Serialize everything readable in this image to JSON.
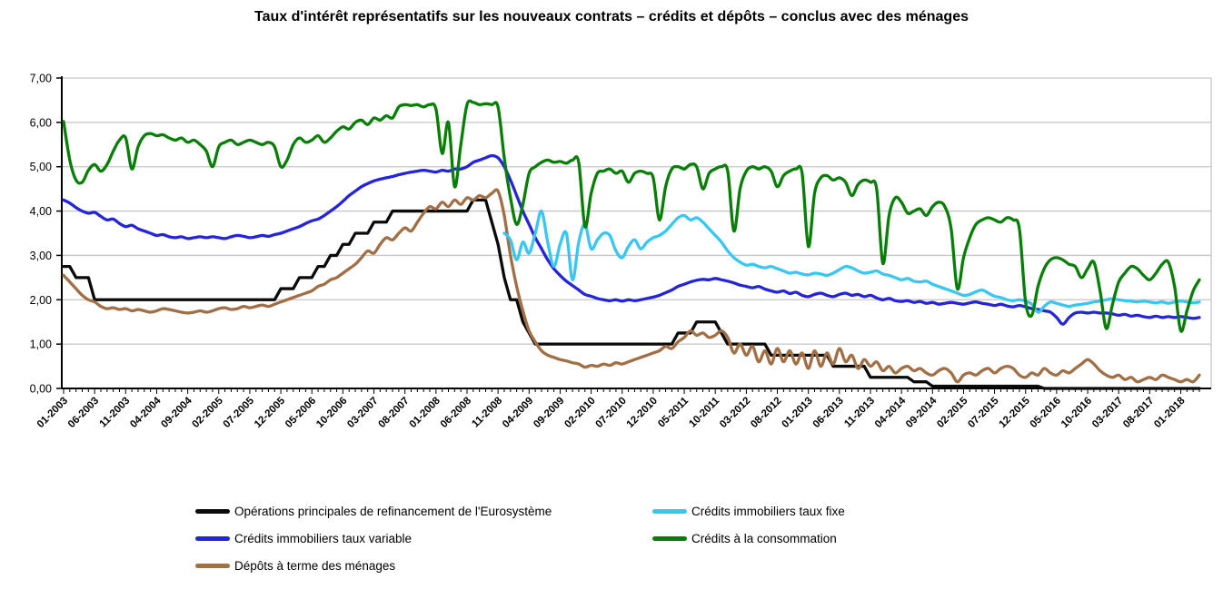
{
  "title": "Taux d'intérêt représentatifs sur les nouveaux contrats – crédits et dépôts – conclus avec des ménages",
  "chart_data": {
    "type": "line",
    "title": "Taux d'intérêt représentatifs sur les nouveaux contrats – crédits et dépôts – conclus avec des ménages",
    "x_unit": "month",
    "n_points": 184,
    "x_tick_labels": [
      "01-2003",
      "06-2003",
      "11-2003",
      "04-2004",
      "09-2004",
      "02-2005",
      "07-2005",
      "12-2005",
      "05-2006",
      "10-2006",
      "03-2007",
      "08-2007",
      "01-2008",
      "06-2008",
      "11-2008",
      "04-2009",
      "09-2009",
      "02-2010",
      "07-2010",
      "12-2010",
      "05-2011",
      "10-2011",
      "03-2012",
      "08-2012",
      "01-2013",
      "06-2013",
      "11-2013",
      "04-2014",
      "09-2014",
      "02-2015",
      "07-2015",
      "12-2015",
      "05-2016",
      "10-2016",
      "03-2017",
      "08-2017",
      "01-2018"
    ],
    "x_label_every": 5,
    "ylim": [
      0,
      7
    ],
    "y_ticks": [
      "0,00",
      "1,00",
      "2,00",
      "3,00",
      "4,00",
      "5,00",
      "6,00",
      "7,00"
    ],
    "grid": "horizontal",
    "grid_color": "#c6c6c6",
    "axis_color": "#000000",
    "legend_position": "bottom",
    "draw_order": [
      0,
      4,
      2,
      1,
      3
    ],
    "series": [
      {
        "name": "Opérations principales de refinancement de l'Eurosystème",
        "color": "#0a0a0a",
        "smooth": false,
        "values": [
          2.75,
          2.75,
          2.5,
          2.5,
          2.5,
          2.0,
          2.0,
          2.0,
          2.0,
          2.0,
          2.0,
          2.0,
          2.0,
          2.0,
          2.0,
          2.0,
          2.0,
          2.0,
          2.0,
          2.0,
          2.0,
          2.0,
          2.0,
          2.0,
          2.0,
          2.0,
          2.0,
          2.0,
          2.0,
          2.0,
          2.0,
          2.0,
          2.0,
          2.0,
          2.0,
          2.25,
          2.25,
          2.25,
          2.5,
          2.5,
          2.5,
          2.75,
          2.75,
          3.0,
          3.0,
          3.25,
          3.25,
          3.5,
          3.5,
          3.5,
          3.75,
          3.75,
          3.75,
          4.0,
          4.0,
          4.0,
          4.0,
          4.0,
          4.0,
          4.0,
          4.0,
          4.0,
          4.0,
          4.0,
          4.0,
          4.0,
          4.25,
          4.25,
          4.25,
          3.75,
          3.25,
          2.5,
          2.0,
          2.0,
          1.5,
          1.25,
          1.0,
          1.0,
          1.0,
          1.0,
          1.0,
          1.0,
          1.0,
          1.0,
          1.0,
          1.0,
          1.0,
          1.0,
          1.0,
          1.0,
          1.0,
          1.0,
          1.0,
          1.0,
          1.0,
          1.0,
          1.0,
          1.0,
          1.0,
          1.25,
          1.25,
          1.25,
          1.5,
          1.5,
          1.5,
          1.5,
          1.25,
          1.0,
          1.0,
          1.0,
          1.0,
          1.0,
          1.0,
          1.0,
          0.75,
          0.75,
          0.75,
          0.75,
          0.75,
          0.75,
          0.75,
          0.75,
          0.75,
          0.75,
          0.5,
          0.5,
          0.5,
          0.5,
          0.5,
          0.5,
          0.25,
          0.25,
          0.25,
          0.25,
          0.25,
          0.25,
          0.25,
          0.15,
          0.15,
          0.15,
          0.05,
          0.05,
          0.05,
          0.05,
          0.05,
          0.05,
          0.05,
          0.05,
          0.05,
          0.05,
          0.05,
          0.05,
          0.05,
          0.05,
          0.05,
          0.05,
          0.05,
          0.05,
          0.0,
          0.0,
          0.0,
          0.0,
          0.0,
          0.0,
          0.0,
          0.0,
          0.0,
          0.0,
          0.0,
          0.0,
          0.0,
          0.0,
          0.0,
          0.0,
          0.0,
          0.0,
          0.0,
          0.0,
          0.0,
          0.0,
          0.0,
          0.0,
          0.0,
          0.0
        ]
      },
      {
        "name": "Crédits immobiliers taux fixe",
        "color": "#38c6f2",
        "smooth": true,
        "values": [
          null,
          null,
          null,
          null,
          null,
          null,
          null,
          null,
          null,
          null,
          null,
          null,
          null,
          null,
          null,
          null,
          null,
          null,
          null,
          null,
          null,
          null,
          null,
          null,
          null,
          null,
          null,
          null,
          null,
          null,
          null,
          null,
          null,
          null,
          null,
          null,
          null,
          null,
          null,
          null,
          null,
          null,
          null,
          null,
          null,
          null,
          null,
          null,
          null,
          null,
          null,
          null,
          null,
          null,
          null,
          null,
          null,
          null,
          null,
          null,
          null,
          null,
          null,
          null,
          null,
          null,
          null,
          null,
          null,
          null,
          null,
          3.5,
          3.35,
          2.9,
          3.3,
          3.05,
          3.5,
          4.0,
          3.3,
          2.75,
          3.25,
          3.5,
          2.45,
          3.3,
          3.7,
          3.15,
          3.35,
          3.5,
          3.45,
          3.1,
          2.95,
          3.2,
          3.35,
          3.15,
          3.3,
          3.4,
          3.45,
          3.55,
          3.7,
          3.85,
          3.9,
          3.8,
          3.85,
          3.75,
          3.6,
          3.45,
          3.3,
          3.1,
          2.95,
          2.85,
          2.78,
          2.8,
          2.75,
          2.72,
          2.75,
          2.7,
          2.65,
          2.6,
          2.62,
          2.58,
          2.56,
          2.6,
          2.58,
          2.55,
          2.6,
          2.68,
          2.75,
          2.72,
          2.65,
          2.6,
          2.62,
          2.65,
          2.58,
          2.55,
          2.5,
          2.45,
          2.48,
          2.42,
          2.4,
          2.42,
          2.35,
          2.3,
          2.25,
          2.2,
          2.15,
          2.1,
          2.12,
          2.18,
          2.22,
          2.15,
          2.08,
          2.05,
          2.0,
          1.98,
          2.0,
          1.97,
          1.9,
          1.72,
          1.85,
          1.95,
          1.92,
          1.88,
          1.85,
          1.88,
          1.9,
          1.92,
          1.95,
          1.97,
          2.0,
          2.02,
          2.0,
          1.98,
          1.97,
          1.95,
          1.97,
          1.95,
          1.93,
          1.95,
          1.92,
          1.95,
          1.97,
          1.95,
          1.93,
          1.95
        ]
      },
      {
        "name": "Crédits immobiliers taux variable",
        "color": "#2424dd",
        "smooth": true,
        "values": [
          4.25,
          4.18,
          4.08,
          4.0,
          3.95,
          3.97,
          3.88,
          3.8,
          3.82,
          3.72,
          3.65,
          3.68,
          3.6,
          3.55,
          3.5,
          3.45,
          3.47,
          3.42,
          3.4,
          3.42,
          3.38,
          3.4,
          3.42,
          3.4,
          3.42,
          3.4,
          3.38,
          3.42,
          3.45,
          3.43,
          3.4,
          3.42,
          3.45,
          3.43,
          3.47,
          3.5,
          3.55,
          3.6,
          3.65,
          3.72,
          3.78,
          3.82,
          3.9,
          4.0,
          4.1,
          4.22,
          4.35,
          4.45,
          4.55,
          4.62,
          4.68,
          4.72,
          4.75,
          4.78,
          4.82,
          4.85,
          4.88,
          4.9,
          4.92,
          4.9,
          4.88,
          4.92,
          4.9,
          4.95,
          4.95,
          5.0,
          5.1,
          5.15,
          5.2,
          5.25,
          5.2,
          5.0,
          4.7,
          4.35,
          4.0,
          3.7,
          3.4,
          3.15,
          2.9,
          2.7,
          2.55,
          2.42,
          2.32,
          2.22,
          2.12,
          2.08,
          2.03,
          2.0,
          1.98,
          2.0,
          1.97,
          2.0,
          1.98,
          2.0,
          2.03,
          2.06,
          2.1,
          2.16,
          2.22,
          2.3,
          2.35,
          2.4,
          2.44,
          2.46,
          2.45,
          2.48,
          2.45,
          2.42,
          2.38,
          2.33,
          2.3,
          2.27,
          2.3,
          2.24,
          2.2,
          2.17,
          2.2,
          2.14,
          2.17,
          2.1,
          2.07,
          2.12,
          2.15,
          2.1,
          2.07,
          2.12,
          2.15,
          2.1,
          2.12,
          2.07,
          2.1,
          2.04,
          2.0,
          2.03,
          1.98,
          1.96,
          1.98,
          1.94,
          1.96,
          1.92,
          1.94,
          1.9,
          1.92,
          1.94,
          1.92,
          1.9,
          1.93,
          1.95,
          1.92,
          1.9,
          1.87,
          1.9,
          1.86,
          1.84,
          1.87,
          1.84,
          1.8,
          1.78,
          1.75,
          1.72,
          1.6,
          1.45,
          1.6,
          1.7,
          1.72,
          1.7,
          1.72,
          1.7,
          1.7,
          1.68,
          1.65,
          1.67,
          1.63,
          1.65,
          1.62,
          1.6,
          1.63,
          1.6,
          1.62,
          1.6,
          1.62,
          1.6,
          1.58,
          1.6
        ]
      },
      {
        "name": "Crédits à la consommation",
        "color": "#077f07",
        "smooth": true,
        "values": [
          6.02,
          5.15,
          4.7,
          4.65,
          4.92,
          5.05,
          4.9,
          5.05,
          5.35,
          5.6,
          5.65,
          4.95,
          5.45,
          5.7,
          5.75,
          5.7,
          5.72,
          5.65,
          5.6,
          5.65,
          5.55,
          5.6,
          5.5,
          5.35,
          5.0,
          5.45,
          5.55,
          5.6,
          5.5,
          5.55,
          5.6,
          5.55,
          5.5,
          5.55,
          5.45,
          5.0,
          5.15,
          5.5,
          5.65,
          5.55,
          5.6,
          5.7,
          5.55,
          5.65,
          5.8,
          5.9,
          5.85,
          6.0,
          6.05,
          5.95,
          6.1,
          6.05,
          6.15,
          6.1,
          6.35,
          6.4,
          6.38,
          6.4,
          6.35,
          6.4,
          6.3,
          5.3,
          6.0,
          4.55,
          5.5,
          6.4,
          6.45,
          6.4,
          6.42,
          6.4,
          6.35,
          5.2,
          4.3,
          3.7,
          4.15,
          4.85,
          5.0,
          5.1,
          5.15,
          5.1,
          5.12,
          5.08,
          5.15,
          5.1,
          3.65,
          4.4,
          4.85,
          4.9,
          4.95,
          4.85,
          4.9,
          4.65,
          4.85,
          4.9,
          4.85,
          4.75,
          3.8,
          4.55,
          4.95,
          5.0,
          4.95,
          5.05,
          5.0,
          4.5,
          4.85,
          4.95,
          5.0,
          4.9,
          3.55,
          4.5,
          4.9,
          5.0,
          4.95,
          5.0,
          4.9,
          4.55,
          4.8,
          4.9,
          4.95,
          4.85,
          3.2,
          4.4,
          4.75,
          4.8,
          4.7,
          4.75,
          4.65,
          4.35,
          4.6,
          4.7,
          4.65,
          4.5,
          2.82,
          3.9,
          4.3,
          4.2,
          3.95,
          4.0,
          4.05,
          3.9,
          4.1,
          4.2,
          4.1,
          3.6,
          2.25,
          2.95,
          3.4,
          3.7,
          3.8,
          3.85,
          3.8,
          3.75,
          3.85,
          3.8,
          3.6,
          1.95,
          1.65,
          2.3,
          2.7,
          2.9,
          2.95,
          2.9,
          2.8,
          2.75,
          2.5,
          2.7,
          2.85,
          2.2,
          1.35,
          1.9,
          2.4,
          2.6,
          2.75,
          2.7,
          2.55,
          2.45,
          2.6,
          2.8,
          2.85,
          2.3,
          1.3,
          1.75,
          2.2,
          2.45
        ]
      },
      {
        "name": "Dépôts à terme des ménages",
        "color": "#a26e44",
        "smooth": true,
        "values": [
          2.55,
          2.4,
          2.25,
          2.1,
          2.0,
          1.95,
          1.85,
          1.8,
          1.82,
          1.78,
          1.8,
          1.75,
          1.78,
          1.75,
          1.72,
          1.75,
          1.8,
          1.78,
          1.75,
          1.72,
          1.7,
          1.72,
          1.75,
          1.72,
          1.75,
          1.8,
          1.82,
          1.78,
          1.8,
          1.85,
          1.82,
          1.85,
          1.88,
          1.85,
          1.9,
          1.95,
          2.0,
          2.05,
          2.1,
          2.15,
          2.2,
          2.3,
          2.35,
          2.45,
          2.5,
          2.6,
          2.7,
          2.8,
          2.95,
          3.1,
          3.05,
          3.25,
          3.4,
          3.35,
          3.5,
          3.62,
          3.55,
          3.75,
          3.95,
          4.1,
          4.05,
          4.2,
          4.1,
          4.25,
          4.15,
          4.3,
          4.25,
          4.35,
          4.3,
          4.4,
          4.45,
          3.9,
          3.0,
          2.3,
          1.75,
          1.3,
          1.05,
          0.85,
          0.75,
          0.7,
          0.65,
          0.62,
          0.58,
          0.55,
          0.48,
          0.52,
          0.5,
          0.55,
          0.52,
          0.58,
          0.55,
          0.6,
          0.65,
          0.7,
          0.75,
          0.8,
          0.85,
          0.95,
          0.9,
          1.05,
          1.15,
          1.3,
          1.2,
          1.25,
          1.15,
          1.2,
          1.3,
          1.15,
          0.8,
          1.0,
          0.75,
          0.95,
          0.6,
          0.85,
          0.55,
          0.9,
          0.6,
          0.85,
          0.55,
          0.8,
          0.45,
          0.85,
          0.5,
          0.8,
          0.55,
          0.9,
          0.6,
          0.75,
          0.45,
          0.65,
          0.5,
          0.6,
          0.4,
          0.5,
          0.35,
          0.45,
          0.5,
          0.4,
          0.45,
          0.35,
          0.3,
          0.4,
          0.45,
          0.35,
          0.15,
          0.3,
          0.35,
          0.3,
          0.4,
          0.45,
          0.35,
          0.45,
          0.5,
          0.45,
          0.3,
          0.25,
          0.35,
          0.3,
          0.45,
          0.35,
          0.3,
          0.4,
          0.35,
          0.45,
          0.55,
          0.65,
          0.55,
          0.4,
          0.3,
          0.25,
          0.3,
          0.2,
          0.25,
          0.15,
          0.2,
          0.25,
          0.2,
          0.3,
          0.25,
          0.2,
          0.15,
          0.2,
          0.15,
          0.3
        ]
      }
    ]
  }
}
